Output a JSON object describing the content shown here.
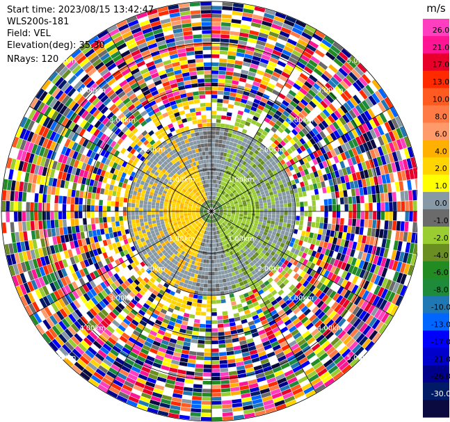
{
  "info": {
    "start_time": "Start time: 2023/08/15 13:42:47",
    "instrument": "WLS200s-181",
    "field": "Field: VEL",
    "elevation": "Elevation(deg): 35.30",
    "nrays": "NRays: 120"
  },
  "chart_data": {
    "type": "heatmap",
    "projection": "polar-ppi",
    "field": "VEL",
    "units": "m/s",
    "nrays": 120,
    "elevation_deg": 35.3,
    "range_rings": [
      {
        "label": "1.00km"
      },
      {
        "label": "2.00km"
      },
      {
        "label": "3.00km"
      },
      {
        "label": "4.00km"
      },
      {
        "label": "5.00km"
      }
    ],
    "colorbar": {
      "title": "m/s",
      "range": [
        -30,
        30
      ],
      "ticks": [
        "26.0",
        "21.0",
        "17.0",
        "13.0",
        "10.0",
        "8.0",
        "6.0",
        "4.0",
        "2.0",
        "1.0",
        "0.0",
        "-1.0",
        "-2.0",
        "-4.0",
        "-6.0",
        "-8.0",
        "-10.0",
        "-13.0",
        "-17.0",
        "-21.0",
        "-26.0",
        "-30.0"
      ],
      "colors": [
        "#ff3fbf",
        "#ff1493",
        "#e8002a",
        "#ff2a00",
        "#ff5a1f",
        "#ff7a45",
        "#ff9a6a",
        "#ffb000",
        "#ffd400",
        "#ffff00",
        "#8899a6",
        "#6b6b6b",
        "#9acd32",
        "#6b8e23",
        "#228b22",
        "#1e8b3a",
        "#1f77b4",
        "#0066ff",
        "#0000ff",
        "#0000cd",
        "#00008b",
        "#001a66",
        "#0a0a40"
      ]
    },
    "grid": true
  }
}
